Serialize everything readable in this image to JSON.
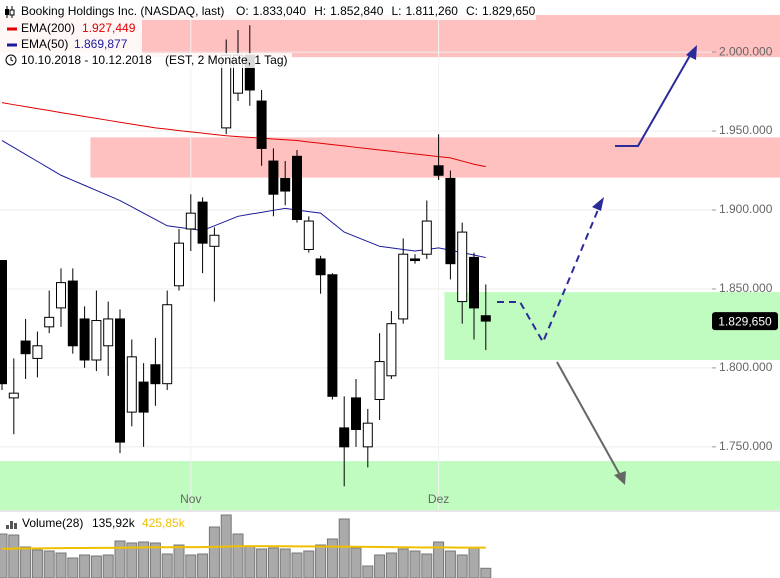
{
  "chart_data": {
    "type": "candlestick",
    "title": "Booking Holdings Inc. (NASDAQ, last)",
    "ohlc_labels": [
      {
        "name": "O:",
        "label": "1.833,040"
      },
      {
        "name": "H:",
        "label": "1.852,840"
      },
      {
        "name": "L:",
        "label": "1.811,260"
      },
      {
        "name": "C:",
        "label": "1.829,650"
      }
    ],
    "date_range": "10.10.2018 - 10.12.2018",
    "period": "(EST, 2 Monate, 1 Tag)",
    "categories": [
      null,
      null,
      null,
      null,
      null,
      null,
      null,
      null,
      null,
      null,
      null,
      null,
      null,
      null,
      null,
      null,
      "Nov",
      null,
      null,
      null,
      null,
      null,
      null,
      null,
      null,
      null,
      null,
      null,
      null,
      null,
      null,
      null,
      null,
      null,
      null,
      null,
      null,
      "Dez",
      null,
      null,
      null,
      null
    ],
    "open": [
      1868000,
      1781000,
      1817000,
      1806000,
      1826000,
      1838000,
      1855000,
      1831000,
      1805000,
      1814000,
      1831000,
      1772000,
      1791000,
      1802000,
      1790000,
      1852000,
      1888000,
      1905000,
      1877000,
      1952000,
      1974000,
      1998000,
      1969000,
      1931000,
      1920000,
      1934000,
      1875000,
      1869000,
      1859000,
      1762000,
      1781000,
      1750000,
      1780000,
      1795000,
      1831000,
      1869000,
      1872000,
      1928000,
      1920000,
      1842000,
      1870000,
      1833040
    ],
    "high": [
      1868000,
      1806000,
      1831000,
      1823000,
      1849000,
      1863000,
      1863000,
      1839000,
      1849000,
      1842000,
      1837000,
      1818000,
      1803000,
      1819000,
      1849000,
      1888000,
      1910000,
      1908000,
      1889000,
      2008000,
      2014000,
      2017000,
      1976000,
      1939000,
      1931000,
      1938000,
      1896000,
      1871000,
      1860000,
      1782000,
      1793000,
      1774000,
      1822000,
      1836000,
      1882000,
      1872000,
      1906000,
      1948000,
      1925000,
      1892000,
      1873000,
      1852840
    ],
    "low": [
      1786000,
      1758000,
      1793000,
      1794000,
      1822000,
      1826000,
      1809000,
      1800000,
      1798000,
      1795000,
      1746000,
      1763000,
      1750000,
      1776000,
      1786000,
      1849000,
      1874000,
      1860000,
      1842000,
      1948000,
      1969000,
      1966000,
      1928000,
      1896000,
      1903000,
      1892000,
      1873000,
      1847000,
      1780000,
      1725000,
      1750000,
      1737000,
      1767000,
      1793000,
      1828000,
      1866000,
      1869000,
      1919000,
      1856000,
      1828000,
      1818000,
      1811260
    ],
    "close": [
      1790000,
      1784000,
      1809000,
      1814000,
      1832000,
      1854000,
      1814000,
      1805000,
      1830000,
      1831000,
      1753000,
      1807000,
      1772000,
      1790000,
      1840000,
      1879000,
      1898000,
      1879000,
      1884000,
      1998000,
      1998000,
      1976000,
      1939000,
      1910000,
      1912000,
      1894000,
      1893000,
      1859000,
      1782000,
      1750000,
      1761000,
      1765000,
      1804000,
      1828000,
      1872000,
      1868000,
      1893000,
      1922000,
      1866000,
      1886000,
      1838000,
      1829650
    ],
    "up_color": "#ffffff",
    "down_color": "#000000",
    "last_label": "1.829,650",
    "series": [
      {
        "name": "EMA(200)",
        "color": "#e00000",
        "value_label": "1.927,449",
        "values": [
          1968000,
          1966700,
          1965500,
          1964200,
          1963000,
          1961700,
          1960500,
          1959200,
          1958000,
          1956800,
          1955600,
          1954400,
          1953200,
          1952000,
          1951200,
          1950300,
          1949500,
          1948700,
          1947800,
          1947000,
          1946500,
          1946000,
          1945500,
          1945000,
          1944500,
          1944000,
          1943100,
          1942300,
          1941400,
          1940600,
          1939700,
          1938900,
          1938000,
          1937200,
          1936300,
          1935500,
          1934700,
          1933800,
          1933000,
          1931000,
          1929000,
          1927449
        ]
      },
      {
        "name": "EMA(50)",
        "color": "#1a1a9c",
        "value_label": "1.869,877",
        "values": [
          1944000,
          1939600,
          1935200,
          1930800,
          1926400,
          1922000,
          1918800,
          1915600,
          1912400,
          1909200,
          1906000,
          1902000,
          1898000,
          1894000,
          1890000,
          1889000,
          1888000,
          1887000,
          1890000,
          1893000,
          1896000,
          1897300,
          1898500,
          1899800,
          1901000,
          1900000,
          1899000,
          1898000,
          1892000,
          1886000,
          1883000,
          1880000,
          1877000,
          1876000,
          1875000,
          1874000,
          1875000,
          1876000,
          1874500,
          1873000,
          1871500,
          1869877
        ]
      }
    ],
    "zones": [
      {
        "color": "#ffc0c0",
        "range": [
          1996800,
          2023500
        ]
      },
      {
        "color": "#ffc0c0",
        "range": [
          1920500,
          1946000
        ],
        "from": 8
      },
      {
        "color": "#c0fcc0",
        "range": [
          1805000,
          1848000
        ],
        "from": 38
      },
      {
        "color": "#c0fcc0",
        "range": [
          1710000,
          1741000
        ]
      }
    ],
    "ylim": [
      1710000,
      2033000
    ],
    "yticks": [
      {
        "value": 1750000,
        "label": "1.750.000"
      },
      {
        "value": 1800000,
        "label": "1.800.000"
      },
      {
        "value": 1850000,
        "label": "1.850.000"
      },
      {
        "value": 1900000,
        "label": "1.900.000"
      },
      {
        "value": 1950000,
        "label": "1.950.000"
      },
      {
        "value": 2000000,
        "label": "2.000.000"
      }
    ],
    "grid": true,
    "volume": {
      "name": "Volume(28)",
      "label": "135,92k",
      "avg_label": "425,85k",
      "color": "#aaaaaa",
      "avg_color": "#f0c000",
      "ylim": [
        0,
        924
      ],
      "values": [
        616,
        602,
        434,
        392,
        378,
        350,
        280,
        322,
        308,
        322,
        518,
        490,
        504,
        490,
        336,
        462,
        322,
        336,
        714,
        882,
        616,
        448,
        406,
        420,
        406,
        350,
        378,
        462,
        546,
        826,
        420,
        168,
        322,
        350,
        406,
        378,
        336,
        504,
        378,
        322,
        420,
        135.92
      ],
      "avg": [
        410,
        412,
        414,
        415,
        416,
        418,
        420,
        420,
        421,
        421,
        424,
        426,
        428,
        430,
        431,
        432,
        433,
        433,
        436,
        440,
        444,
        446,
        446,
        445,
        444,
        443,
        442,
        441,
        440,
        440,
        438,
        436,
        434,
        432,
        430,
        428,
        427,
        428,
        427,
        426,
        426,
        425.85
      ]
    }
  }
}
